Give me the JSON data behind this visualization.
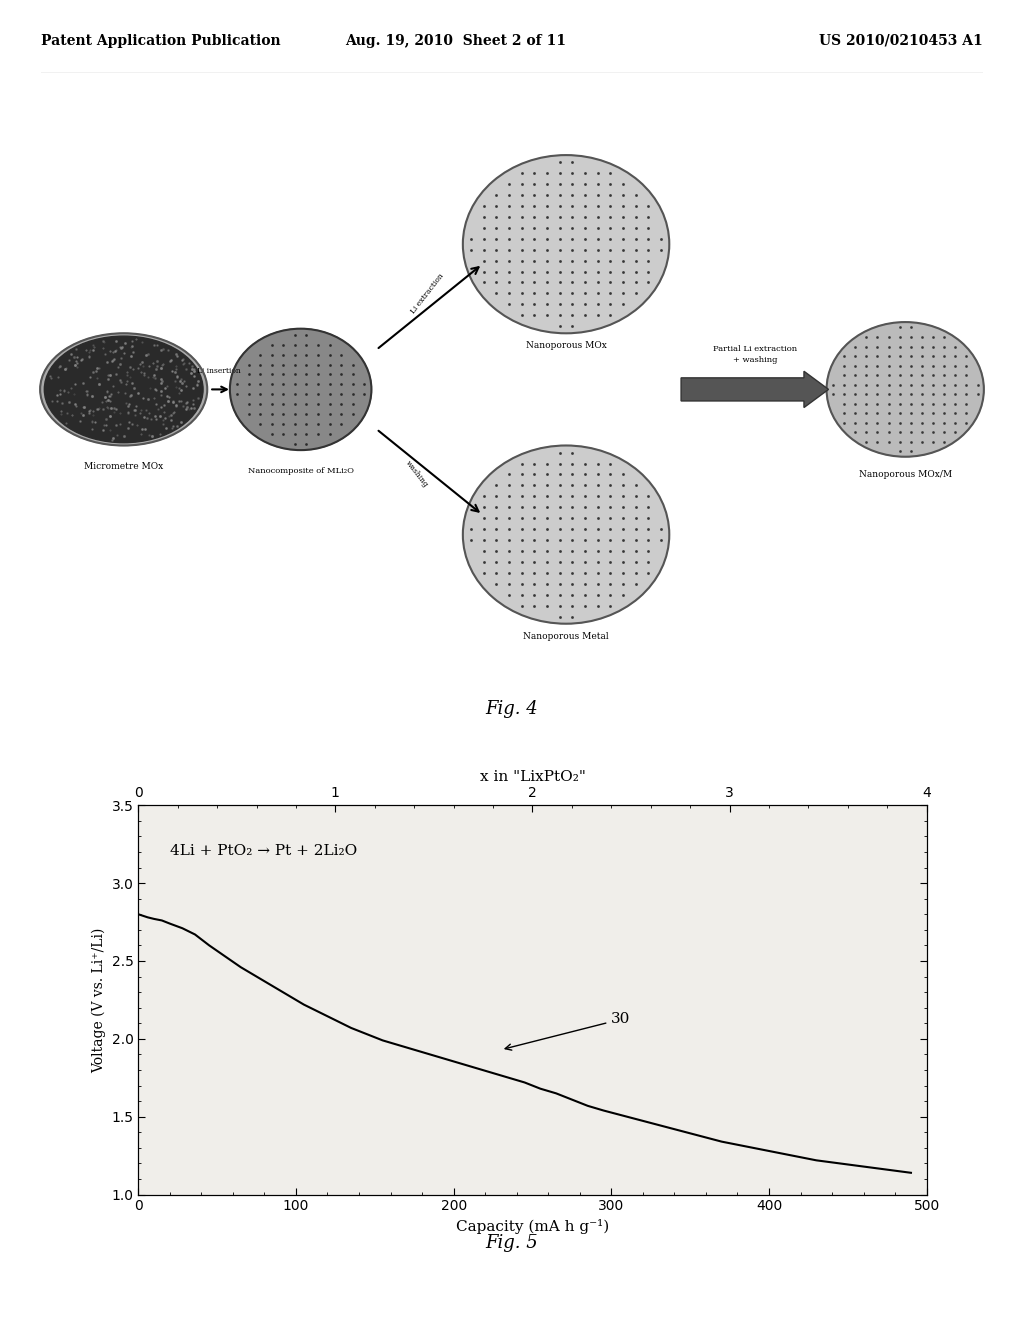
{
  "header_left": "Patent Application Publication",
  "header_center": "Aug. 19, 2010  Sheet 2 of 11",
  "header_right": "US 2010/0210453 A1",
  "fig4_label": "Fig. 4",
  "fig5_label": "Fig. 5",
  "graph_title": "x in \"LixPtO₂\"",
  "graph_xlabel": "Capacity (mA h g⁻¹)",
  "graph_ylabel": "Voltage (V vs. Li⁺/Li)",
  "graph_annotation": "4Li + PtO₂ → Pt + 2Li₂O",
  "curve_label": "30",
  "xlim": [
    0,
    500
  ],
  "ylim": [
    1.0,
    3.5
  ],
  "x2lim": [
    0,
    4
  ],
  "capacity_data": [
    0,
    3,
    6,
    10,
    15,
    20,
    28,
    36,
    45,
    55,
    65,
    75,
    85,
    95,
    105,
    115,
    125,
    135,
    145,
    155,
    165,
    175,
    185,
    195,
    205,
    215,
    225,
    235,
    245,
    255,
    265,
    275,
    285,
    295,
    310,
    325,
    340,
    355,
    370,
    385,
    400,
    415,
    430,
    445,
    460,
    475,
    490
  ],
  "voltage_data": [
    2.8,
    2.79,
    2.78,
    2.77,
    2.76,
    2.74,
    2.71,
    2.67,
    2.6,
    2.53,
    2.46,
    2.4,
    2.34,
    2.28,
    2.22,
    2.17,
    2.12,
    2.07,
    2.03,
    1.99,
    1.96,
    1.93,
    1.9,
    1.87,
    1.84,
    1.81,
    1.78,
    1.75,
    1.72,
    1.68,
    1.65,
    1.61,
    1.57,
    1.54,
    1.5,
    1.46,
    1.42,
    1.38,
    1.34,
    1.31,
    1.28,
    1.25,
    1.22,
    1.2,
    1.18,
    1.16,
    1.14
  ]
}
